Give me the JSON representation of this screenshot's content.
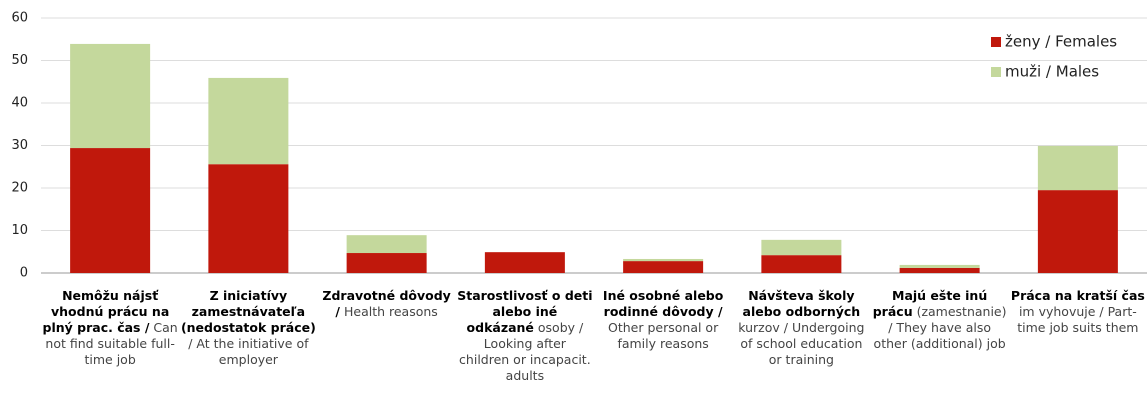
{
  "chart_data": {
    "type": "stacked_bar",
    "categories": [
      [
        "Nemôžu nájsť vhodnú prácu na plný prac. čas /",
        "Can not find suitable full-time job"
      ],
      [
        "Z iniciatívy zamestnávateľa (nedostatok práce)",
        "/ At the initiative of employer"
      ],
      [
        "Zdravotné dôvody /",
        "Health reasons"
      ],
      [
        "Starostlivosť o deti alebo iné odkázané",
        "osoby / Looking after children or incapacit. adults"
      ],
      [
        "Iné osobné alebo rodinné dôvody /",
        "Other personal or family reasons"
      ],
      [
        "Návšteva školy alebo odborných",
        "kurzov / Undergoing of school education or training"
      ],
      [
        "Majú ešte inú prácu",
        "(zamestnanie) / They have also other (additional) job"
      ],
      [
        "Práca na kratší čas",
        "im vyhovuje / Part-time job suits them"
      ]
    ],
    "series": [
      {
        "name": "ženy / Females",
        "color": "#c0180c",
        "values": [
          29.4,
          25.6,
          4.7,
          4.9,
          2.8,
          4.2,
          1.2,
          19.5
        ]
      },
      {
        "name": "muži / Males",
        "color": "#c4d89c",
        "values": [
          24.5,
          20.3,
          4.2,
          0,
          0.5,
          3.6,
          0.7,
          10.4
        ]
      }
    ],
    "ylim": [
      0,
      60
    ],
    "yticks": [
      0,
      10,
      20,
      30,
      40,
      50,
      60
    ],
    "grid": true,
    "legend": "top-right"
  }
}
